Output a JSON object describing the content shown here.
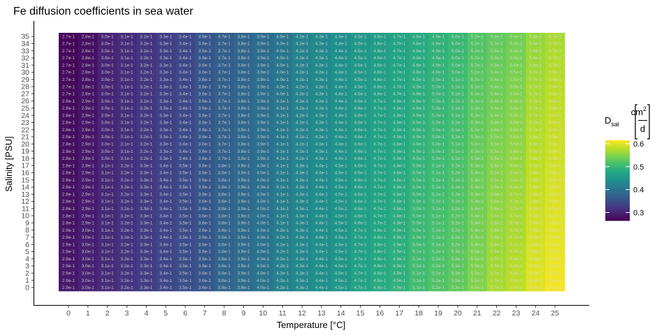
{
  "chart_data": {
    "type": "heatmap",
    "title": "Fe diffusion coefficients in sea water",
    "xlabel": "Temperature [°C]",
    "ylabel": "Salinity [PSU]",
    "x": [
      0,
      1,
      2,
      3,
      4,
      5,
      6,
      7,
      8,
      9,
      10,
      11,
      12,
      13,
      14,
      15,
      16,
      17,
      18,
      19,
      20,
      21,
      22,
      23,
      24,
      25
    ],
    "y": [
      0,
      1,
      2,
      3,
      4,
      5,
      6,
      7,
      8,
      9,
      10,
      11,
      12,
      13,
      14,
      15,
      16,
      17,
      18,
      19,
      20,
      21,
      22,
      23,
      24,
      25,
      26,
      27,
      28,
      29,
      30,
      31,
      32,
      33,
      34,
      35
    ],
    "value_at_S0": [
      "2.9e-01",
      "3.0e-01",
      "3.1e-01",
      "3.2e-01",
      "3.3e-01",
      "3.4e-01",
      "3.5e-01",
      "3.6e-01",
      "3.8e-01",
      "3.9e-01",
      "4.0e-01",
      "4.2e-01",
      "4.3e-01",
      "4.4e-01",
      "4.5e-01",
      "4.7e-01",
      "4.8e-01",
      "4.9e-01",
      "5.1e-01",
      "5.2e-01",
      "5.3e-01",
      "5.5e-01",
      "5.7e-01",
      "5.8e-01",
      "6.0e-01",
      "6.1e-01"
    ],
    "value_at_S35": [
      "2.7e-01",
      "2.8e-01",
      "3.0e-01",
      "3.1e-01",
      "3.2e-01",
      "3.3e-01",
      "3.4e-01",
      "3.6e-01",
      "3.7e-01",
      "3.8e-01",
      "3.9e-01",
      "4.0e-01",
      "4.2e-01",
      "4.3e-01",
      "4.4e-01",
      "4.5e-01",
      "4.6e-01",
      "4.7e-01",
      "4.8e-01",
      "4.9e-01",
      "5.0e-01",
      "5.2e-01",
      "5.3e-01",
      "5.4e-01",
      "5.6e-01",
      "5.7e-01"
    ],
    "legend": {
      "title_main": "D",
      "title_sub": "sal",
      "unit_numerator": "cm",
      "unit_exponent": "2",
      "unit_denominator": "d",
      "range": [
        0.265,
        0.615
      ],
      "ticks": [
        0.3,
        0.4,
        0.5,
        0.6
      ],
      "tick_labels": [
        "0.3",
        "0.4",
        "0.5",
        "0.6"
      ],
      "colormap": "viridis",
      "placement": "right"
    },
    "grid": false
  }
}
